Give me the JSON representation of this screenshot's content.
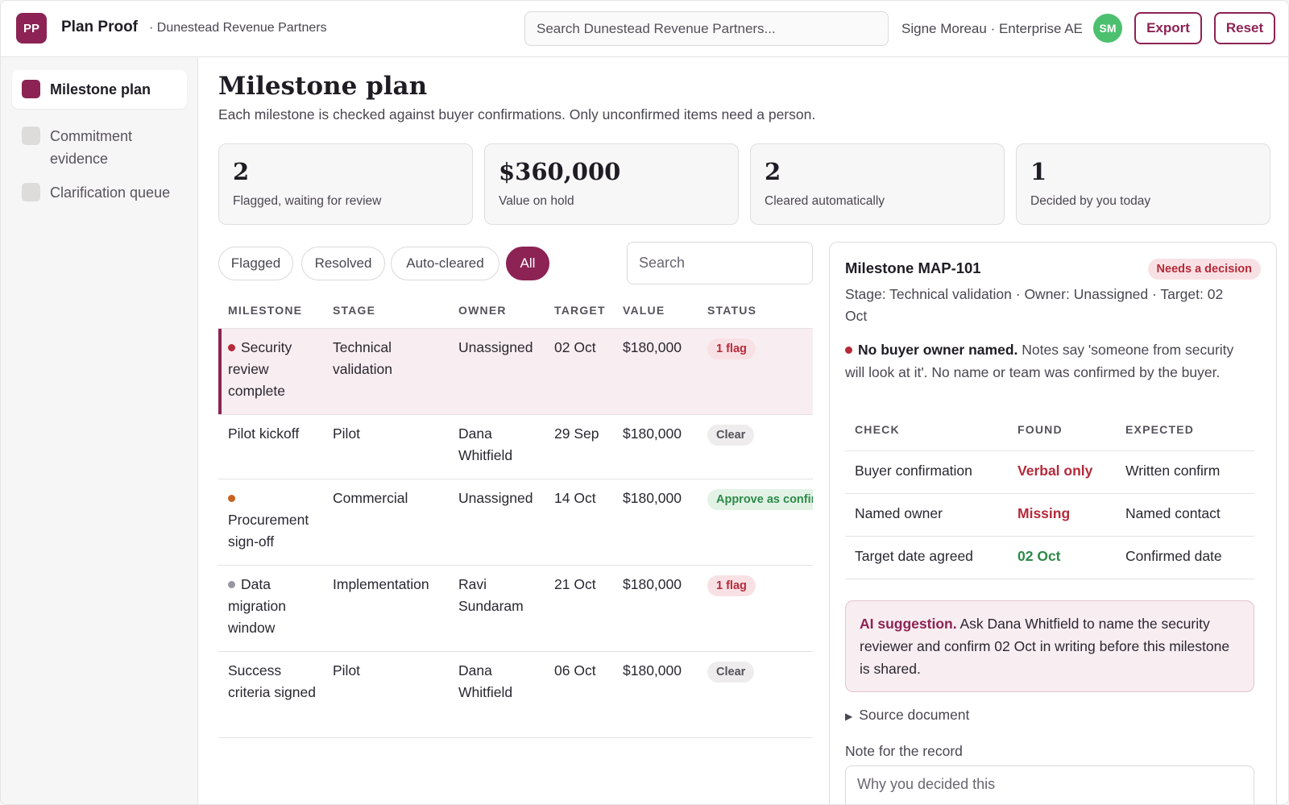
{
  "header": {
    "logo": "PP",
    "app_name": "Plan Proof",
    "org": "· Dunestead Revenue Partners",
    "search_placeholder": "Search Dunestead Revenue Partners...",
    "user": "Signe Moreau · Enterprise AE",
    "avatar": "SM",
    "export_label": "Export",
    "reset_label": "Reset"
  },
  "sidebar": {
    "items": [
      {
        "label": "Milestone plan",
        "active": true
      },
      {
        "label": "Commitment evidence",
        "active": false
      },
      {
        "label": "Clarification queue",
        "active": false
      }
    ]
  },
  "page": {
    "title": "Milestone plan",
    "subtitle": "Each milestone is checked against buyer confirmations. Only unconfirmed items need a person."
  },
  "stats": [
    {
      "value": "2",
      "caption": "Flagged, waiting for review"
    },
    {
      "value": "$360,000",
      "caption": "Value on hold"
    },
    {
      "value": "2",
      "caption": "Cleared automatically"
    },
    {
      "value": "1",
      "caption": "Decided by you today"
    }
  ],
  "filters": [
    "Flagged",
    "Resolved",
    "Auto-cleared",
    "All"
  ],
  "active_filter": "All",
  "table_search_placeholder": "Search",
  "table": {
    "columns": [
      "MILESTONE",
      "STAGE",
      "OWNER",
      "TARGET",
      "VALUE",
      "STATUS"
    ],
    "rows": [
      {
        "milestone": "Security review complete",
        "dot": "#b52a3a",
        "stage": "Technical validation",
        "owner": "Unassigned",
        "target": "02 Oct",
        "value": "$180,000",
        "status": "1 flag",
        "status_type": "flag",
        "selected": true
      },
      {
        "milestone": "Pilot kickoff",
        "dot": null,
        "stage": "Pilot",
        "owner": "Dana Whitfield",
        "target": "29 Sep",
        "value": "$180,000",
        "status": "Clear",
        "status_type": "clear",
        "selected": false
      },
      {
        "milestone": "Procurement sign-off",
        "dot": "#c8621e",
        "stage": "Commercial",
        "owner": "Unassigned",
        "target": "14 Oct",
        "value": "$180,000",
        "status": "Approve as confirmed",
        "status_type": "approve",
        "selected": false
      },
      {
        "milestone": "Data migration window",
        "dot": "#9a96a0",
        "stage": "Implementation",
        "owner": "Ravi Sundaram",
        "target": "21 Oct",
        "value": "$180,000",
        "status": "1 flag",
        "status_type": "flag",
        "selected": false
      },
      {
        "milestone": "Success criteria signed",
        "dot": null,
        "stage": "Pilot",
        "owner": "Dana Whitfield",
        "target": "06 Oct",
        "value": "$180,000",
        "status": "Clear",
        "status_type": "clear",
        "selected": false
      }
    ]
  },
  "detail": {
    "title": "Milestone MAP-101",
    "badge": "Needs a decision",
    "meta": "Stage: Technical validation · Owner: Unassigned · Target: 02 Oct",
    "issue_title": "No buyer owner named.",
    "issue_text": "Notes say 'someone from security will look at it'. No name or team was confirmed by the buyer.",
    "checks_columns": [
      "CHECK",
      "FOUND",
      "EXPECTED"
    ],
    "checks": [
      {
        "check": "Buyer confirmation",
        "found": "Verbal only",
        "found_ok": false,
        "expected": "Written confirm"
      },
      {
        "check": "Named owner",
        "found": "Missing",
        "found_ok": false,
        "expected": "Named contact"
      },
      {
        "check": "Target date agreed",
        "found": "02 Oct",
        "found_ok": true,
        "expected": "Confirmed date"
      }
    ],
    "ai_label": "AI suggestion.",
    "ai_text": "Ask Dana Whitfield to name the security reviewer and confirm 02 Oct in writing before this milestone is shared.",
    "source_label": "Source document",
    "note_label": "Note for the record",
    "note_placeholder": "Why you decided this"
  },
  "colors": {
    "accent": "#8c2354",
    "flag": "#b52a3a",
    "ok": "#2d8a48",
    "avatar": "#4cc06f"
  }
}
